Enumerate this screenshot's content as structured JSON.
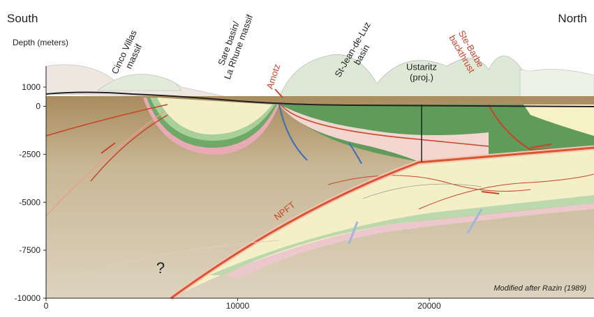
{
  "header": {
    "left": "South",
    "right": "North",
    "axis_title": "Depth (meters)"
  },
  "x_axis": {
    "lim": [
      0,
      28600
    ],
    "ticks": [
      0,
      10000,
      20000
    ]
  },
  "y_axis": {
    "lim": [
      -10000,
      1000
    ],
    "ticks": [
      1000,
      0,
      -2500,
      -5000,
      -7500,
      -10000
    ]
  },
  "labels": [
    {
      "lines": [
        "Cinco Villas",
        "massif"
      ]
    },
    {
      "lines": [
        "Sare basin/",
        "La Rhune massif"
      ]
    },
    {
      "lines": [
        "Amotz"
      ]
    },
    {
      "lines": [
        "St-Jean-de-Luz",
        "basin"
      ]
    },
    {
      "lines": [
        "Ustaritz",
        "(proj.)"
      ]
    },
    {
      "lines": [
        "Ste-Barbe",
        "backthrust"
      ]
    },
    {
      "lines": [
        "NPFT"
      ]
    },
    {
      "lines": [
        "?"
      ]
    }
  ],
  "credit": "Modified after Razin (1989)"
}
